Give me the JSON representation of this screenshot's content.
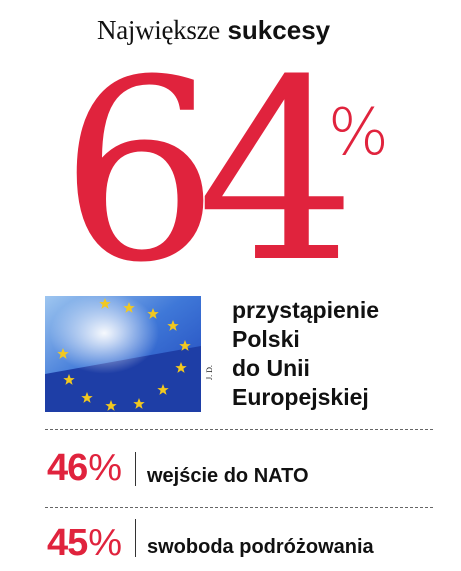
{
  "title": {
    "regular": "Największe",
    "bold": "sukcesy"
  },
  "headline": {
    "value": "64",
    "unit": "%",
    "description_lines": [
      "przystąpienie",
      "Polski",
      "do Unii",
      "Europejskiej"
    ],
    "photo_credit": "J. D."
  },
  "items": [
    {
      "value": "46",
      "unit": "%",
      "label": "wejście do NATO"
    },
    {
      "value": "45",
      "unit": "%",
      "label": "swoboda podróżowania"
    }
  ],
  "colors": {
    "accent": "#e0233d",
    "text": "#111111",
    "flag_blue": "#1a3fb0",
    "star": "#f2c81f"
  }
}
